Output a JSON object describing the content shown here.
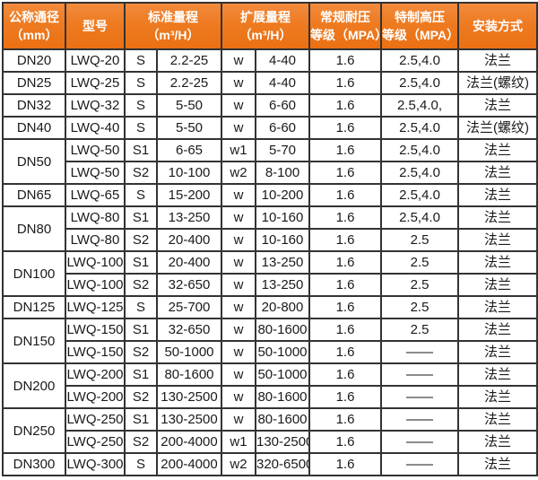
{
  "colors": {
    "header_bg": "#ee7b21",
    "header_text": "#ffffff",
    "border": "#333333",
    "body_text": "#1a1a1a"
  },
  "table": {
    "header": {
      "dn": {
        "line1": "公称通径",
        "line2": "（mm）"
      },
      "model": {
        "line1": "型号",
        "line2": ""
      },
      "std": {
        "line1": "标准量程",
        "line2": "（m³/H）"
      },
      "ext": {
        "line1": "扩展量程",
        "line2": "（m³/H）"
      },
      "cp": {
        "line1": "常规耐压",
        "line2": "等级（MPA）"
      },
      "hp": {
        "line1": "特制高压",
        "line2": "等级（MPA）"
      },
      "install": {
        "line1": "安装方式",
        "line2": ""
      }
    },
    "rows": [
      {
        "dn": "DN20",
        "dn_span": 1,
        "model": "LWQ-20",
        "s": "S",
        "std": "2.2-25",
        "w": "w",
        "ext": "4-40",
        "cp": "1.6",
        "hp": "2.5,4.0",
        "install": "法兰"
      },
      {
        "dn": "DN25",
        "dn_span": 1,
        "model": "LWQ-25",
        "s": "S",
        "std": "2.2-25",
        "w": "w",
        "ext": "4-40",
        "cp": "1.6",
        "hp": "2.5,4.0",
        "install": "法兰(螺纹)"
      },
      {
        "dn": "DN32",
        "dn_span": 1,
        "model": "LWQ-32",
        "s": "S",
        "std": "5-50",
        "w": "w",
        "ext": "6-60",
        "cp": "1.6",
        "hp": "2.5,4.0,",
        "install": "法兰"
      },
      {
        "dn": "DN40",
        "dn_span": 1,
        "model": "LWQ-40",
        "s": "S",
        "std": "5-50",
        "w": "w",
        "ext": "6-60",
        "cp": "1.6",
        "hp": "2.5,4.0",
        "install": "法兰(螺纹)"
      },
      {
        "dn": "DN50",
        "dn_span": 2,
        "model": "LWQ-50",
        "s": "S1",
        "std": "6-65",
        "w": "w1",
        "ext": "5-70",
        "cp": "1.6",
        "hp": "2.5,4.0",
        "install": "法兰"
      },
      {
        "dn": null,
        "model": "LWQ-50",
        "s": "S2",
        "std": "10-100",
        "w": "w2",
        "ext": "8-100",
        "cp": "1.6",
        "hp": "2.5,4.0",
        "install": "法兰"
      },
      {
        "dn": "DN65",
        "dn_span": 1,
        "model": "LWQ-65",
        "s": "S",
        "std": "15-200",
        "w": "w",
        "ext": "10-200",
        "cp": "1.6",
        "hp": "2.5,4.0",
        "install": "法兰"
      },
      {
        "dn": "DN80",
        "dn_span": 2,
        "model": "LWQ-80",
        "s": "S1",
        "std": "13-250",
        "w": "w",
        "ext": "10-160",
        "cp": "1.6",
        "hp": "2.5,4.0",
        "install": "法兰"
      },
      {
        "dn": null,
        "model": "LWQ-80",
        "s": "S2",
        "std": "20-400",
        "w": "w",
        "ext": "10-160",
        "cp": "1.6",
        "hp": "2.5",
        "install": "法兰"
      },
      {
        "dn": "DN100",
        "dn_span": 2,
        "model": "LWQ-100",
        "s": "S1",
        "std": "20-400",
        "w": "w",
        "ext": "13-250",
        "cp": "1.6",
        "hp": "2.5",
        "install": "法兰"
      },
      {
        "dn": null,
        "model": "LWQ-100",
        "s": "S2",
        "std": "32-650",
        "w": "w",
        "ext": "13-250",
        "cp": "1.6",
        "hp": "2.5",
        "install": "法兰"
      },
      {
        "dn": "DN125",
        "dn_span": 1,
        "model": "LWQ-125",
        "s": "S",
        "std": "25-700",
        "w": "w",
        "ext": "20-800",
        "cp": "1.6",
        "hp": "2.5",
        "install": "法兰"
      },
      {
        "dn": "DN150",
        "dn_span": 2,
        "model": "LWQ-150",
        "s": "S1",
        "std": "32-650",
        "w": "w",
        "ext": "80-1600",
        "cp": "1.6",
        "hp": "2.5",
        "install": "法兰"
      },
      {
        "dn": null,
        "model": "LWQ-150",
        "s": "S2",
        "std": "50-1000",
        "w": "w",
        "ext": "50-1000",
        "cp": "1.6",
        "hp": "——",
        "install": "法兰"
      },
      {
        "dn": "DN200",
        "dn_span": 2,
        "model": "LWQ-200",
        "s": "S1",
        "std": "80-1600",
        "w": "w",
        "ext": "50-1000",
        "cp": "1.6",
        "hp": "——",
        "install": "法兰"
      },
      {
        "dn": null,
        "model": "LWQ-200",
        "s": "S2",
        "std": "130-2500",
        "w": "w",
        "ext": "80-1600",
        "cp": "1.6",
        "hp": "——",
        "install": "法兰"
      },
      {
        "dn": "DN250",
        "dn_span": 2,
        "model": "LWQ-250",
        "s": "S1",
        "std": "130-2500",
        "w": "w",
        "ext": "80-1600",
        "cp": "1.6",
        "hp": "——",
        "install": "法兰"
      },
      {
        "dn": null,
        "model": "LWQ-250",
        "s": "S2",
        "std": "200-4000",
        "w": "w1",
        "ext": "130-2500",
        "cp": "1.6",
        "hp": "——",
        "install": "法兰"
      },
      {
        "dn": "DN300",
        "dn_span": 1,
        "model": "LWQ-300",
        "s": "S",
        "std": "200-4000",
        "w": "w2",
        "ext": "320-6500",
        "cp": "1.6",
        "hp": "——",
        "install": "法兰"
      }
    ]
  }
}
